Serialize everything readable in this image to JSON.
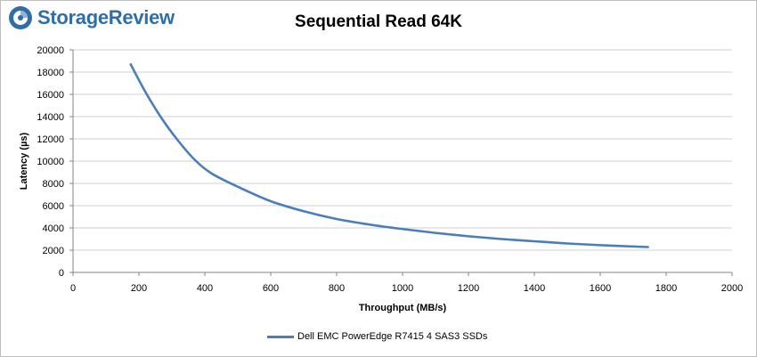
{
  "brand": {
    "name": "StorageReview"
  },
  "colors": {
    "series": "#4a7ebb",
    "grid": "#d0d0d0",
    "axis": "#868686",
    "brand": "#2f6ea8"
  },
  "chart_data": {
    "type": "line",
    "title": "Sequential Read 64K",
    "xlabel": "Throughput (MB/s)",
    "ylabel": "Latency (µs)",
    "xlim": [
      0,
      2000
    ],
    "ylim": [
      0,
      20000
    ],
    "x_ticks": [
      0,
      200,
      400,
      600,
      800,
      1000,
      1200,
      1400,
      1600,
      1800,
      2000
    ],
    "y_ticks": [
      0,
      2000,
      4000,
      6000,
      8000,
      10000,
      12000,
      14000,
      16000,
      18000,
      20000
    ],
    "grid": "horizontal",
    "legend_position": "bottom",
    "series": [
      {
        "name": "Dell EMC PowerEdge R7415 4 SAS3 SSDs",
        "x": [
          175,
          220,
          270,
          320,
          370,
          420,
          500,
          600,
          700,
          800,
          900,
          1000,
          1100,
          1200,
          1300,
          1400,
          1500,
          1600,
          1700,
          1745
        ],
        "y": [
          18700,
          16200,
          13800,
          11800,
          10100,
          8900,
          7700,
          6400,
          5500,
          4800,
          4300,
          3900,
          3550,
          3250,
          3000,
          2800,
          2600,
          2450,
          2330,
          2280
        ]
      }
    ]
  }
}
